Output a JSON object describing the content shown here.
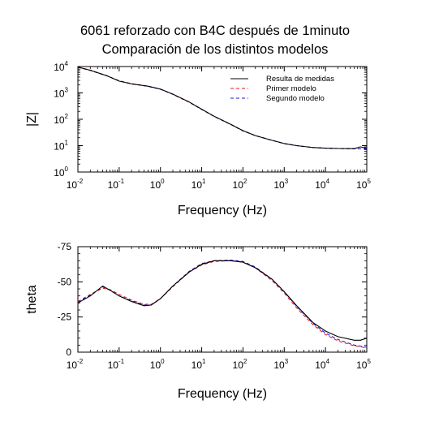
{
  "title_line1": "6061 reforzado con B4C después de 1minuto",
  "title_line2": "Comparación de los distintos modelos",
  "colors": {
    "measured": "#000000",
    "model1": "#e8141c",
    "model2": "#1a1ad6",
    "frame": "#000000"
  },
  "chart_data": [
    {
      "type": "line",
      "xlabel": "Frequency (Hz)",
      "ylabel": "|Z|",
      "xscale": "log",
      "yscale": "log",
      "xlim": [
        0.01,
        100000
      ],
      "ylim": [
        1,
        10000
      ],
      "x_tick_labels": [
        {
          "base": "10",
          "exp": "-2"
        },
        {
          "base": "10",
          "exp": "-1"
        },
        {
          "base": "10",
          "exp": "0"
        },
        {
          "base": "10",
          "exp": "1"
        },
        {
          "base": "10",
          "exp": "2"
        },
        {
          "base": "10",
          "exp": "3"
        },
        {
          "base": "10",
          "exp": "4"
        },
        {
          "base": "10",
          "exp": "5"
        }
      ],
      "y_tick_labels": [
        {
          "base": "10",
          "exp": "0"
        },
        {
          "base": "10",
          "exp": "1"
        },
        {
          "base": "10",
          "exp": "2"
        },
        {
          "base": "10",
          "exp": "3"
        },
        {
          "base": "10",
          "exp": "4"
        }
      ],
      "legend": {
        "position": "top-right",
        "entries": [
          {
            "label": "Resulta de medidas",
            "series": 0
          },
          {
            "label": "Primer modelo",
            "series": 1
          },
          {
            "label": "Segundo modelo",
            "series": 2
          }
        ]
      },
      "series": [
        {
          "name": "Resulta de medidas",
          "style": "solid",
          "x": [
            0.01,
            0.02,
            0.05,
            0.1,
            0.2,
            0.5,
            1,
            2,
            5,
            10,
            20,
            50,
            100,
            200,
            500,
            1000,
            2000,
            5000,
            10000,
            20000,
            50000,
            70000,
            100000
          ],
          "y": [
            9500,
            7200,
            4500,
            2800,
            2200,
            1800,
            1400,
            900,
            450,
            240,
            130,
            65,
            37,
            24,
            16,
            12,
            10,
            8.5,
            8,
            7.8,
            7.7,
            9,
            8
          ]
        },
        {
          "name": "Primer modelo",
          "style": "dashed",
          "x": [
            0.01,
            0.02,
            0.05,
            0.1,
            0.2,
            0.5,
            1,
            2,
            5,
            10,
            20,
            50,
            100,
            200,
            500,
            1000,
            2000,
            5000,
            10000,
            20000,
            50000,
            100000
          ],
          "y": [
            9600,
            7300,
            4500,
            2900,
            2250,
            1800,
            1380,
            880,
            440,
            235,
            128,
            64,
            36,
            24,
            16,
            12,
            10,
            8.5,
            8,
            7.8,
            7.6,
            7.5
          ]
        },
        {
          "name": "Segundo modelo",
          "style": "dashed",
          "x": [
            0.01,
            0.02,
            0.05,
            0.1,
            0.2,
            0.5,
            1,
            2,
            5,
            10,
            20,
            50,
            100,
            200,
            500,
            1000,
            2000,
            5000,
            10000,
            20000,
            50000,
            100000
          ],
          "y": [
            9400,
            7100,
            4450,
            2850,
            2200,
            1780,
            1390,
            890,
            445,
            238,
            129,
            65,
            37,
            24,
            16,
            12,
            10,
            8.5,
            8,
            7.8,
            7.6,
            7.5
          ]
        }
      ]
    },
    {
      "type": "line",
      "xlabel": "Frequency (Hz)",
      "ylabel": "theta",
      "xscale": "log",
      "yscale": "linear",
      "yinverted": true,
      "xlim": [
        0.01,
        100000
      ],
      "ylim": [
        0,
        -75
      ],
      "x_tick_labels": [
        {
          "base": "10",
          "exp": "-2"
        },
        {
          "base": "10",
          "exp": "-1"
        },
        {
          "base": "10",
          "exp": "0"
        },
        {
          "base": "10",
          "exp": "1"
        },
        {
          "base": "10",
          "exp": "2"
        },
        {
          "base": "10",
          "exp": "3"
        },
        {
          "base": "10",
          "exp": "4"
        },
        {
          "base": "10",
          "exp": "5"
        }
      ],
      "y_ticks": [
        0,
        -25,
        -50,
        -75
      ],
      "y_tick_labels": [
        "0",
        "-25",
        "-50",
        "-75"
      ],
      "series": [
        {
          "name": "Resulta de medidas",
          "style": "solid",
          "x": [
            0.01,
            0.02,
            0.04,
            0.06,
            0.1,
            0.2,
            0.4,
            0.6,
            1,
            2,
            5,
            10,
            20,
            50,
            100,
            200,
            500,
            1000,
            2000,
            5000,
            10000,
            20000,
            50000,
            70000,
            100000
          ],
          "y": [
            -35,
            -40,
            -47,
            -44,
            -40,
            -36,
            -33,
            -33.5,
            -38,
            -47,
            -57,
            -62.5,
            -65,
            -65,
            -64,
            -60,
            -52,
            -43,
            -33,
            -21,
            -15,
            -11,
            -8.5,
            -8.5,
            -10
          ]
        },
        {
          "name": "Primer modelo",
          "style": "dashed",
          "x": [
            0.01,
            0.02,
            0.04,
            0.06,
            0.1,
            0.2,
            0.4,
            0.6,
            1,
            2,
            5,
            10,
            20,
            50,
            100,
            200,
            500,
            1000,
            2000,
            5000,
            10000,
            20000,
            50000,
            100000
          ],
          "y": [
            -36,
            -41,
            -45.5,
            -44.5,
            -41,
            -37,
            -34,
            -34,
            -38,
            -46.5,
            -57,
            -62,
            -64.5,
            -65,
            -64,
            -60,
            -51,
            -42,
            -31.5,
            -19.5,
            -12.5,
            -8,
            -4.5,
            -3
          ]
        },
        {
          "name": "Segundo modelo",
          "style": "dashed",
          "x": [
            0.01,
            0.02,
            0.04,
            0.06,
            0.1,
            0.2,
            0.4,
            0.6,
            1,
            2,
            5,
            10,
            20,
            50,
            100,
            200,
            500,
            1000,
            2000,
            5000,
            10000,
            20000,
            50000,
            100000
          ],
          "y": [
            -35.5,
            -40.5,
            -46.5,
            -44,
            -40,
            -36.5,
            -33.5,
            -33.5,
            -38,
            -47,
            -57.5,
            -63,
            -65,
            -65.5,
            -64.5,
            -60.5,
            -52,
            -43,
            -32.5,
            -20.5,
            -13.5,
            -9,
            -5,
            -3.5
          ]
        }
      ]
    }
  ]
}
